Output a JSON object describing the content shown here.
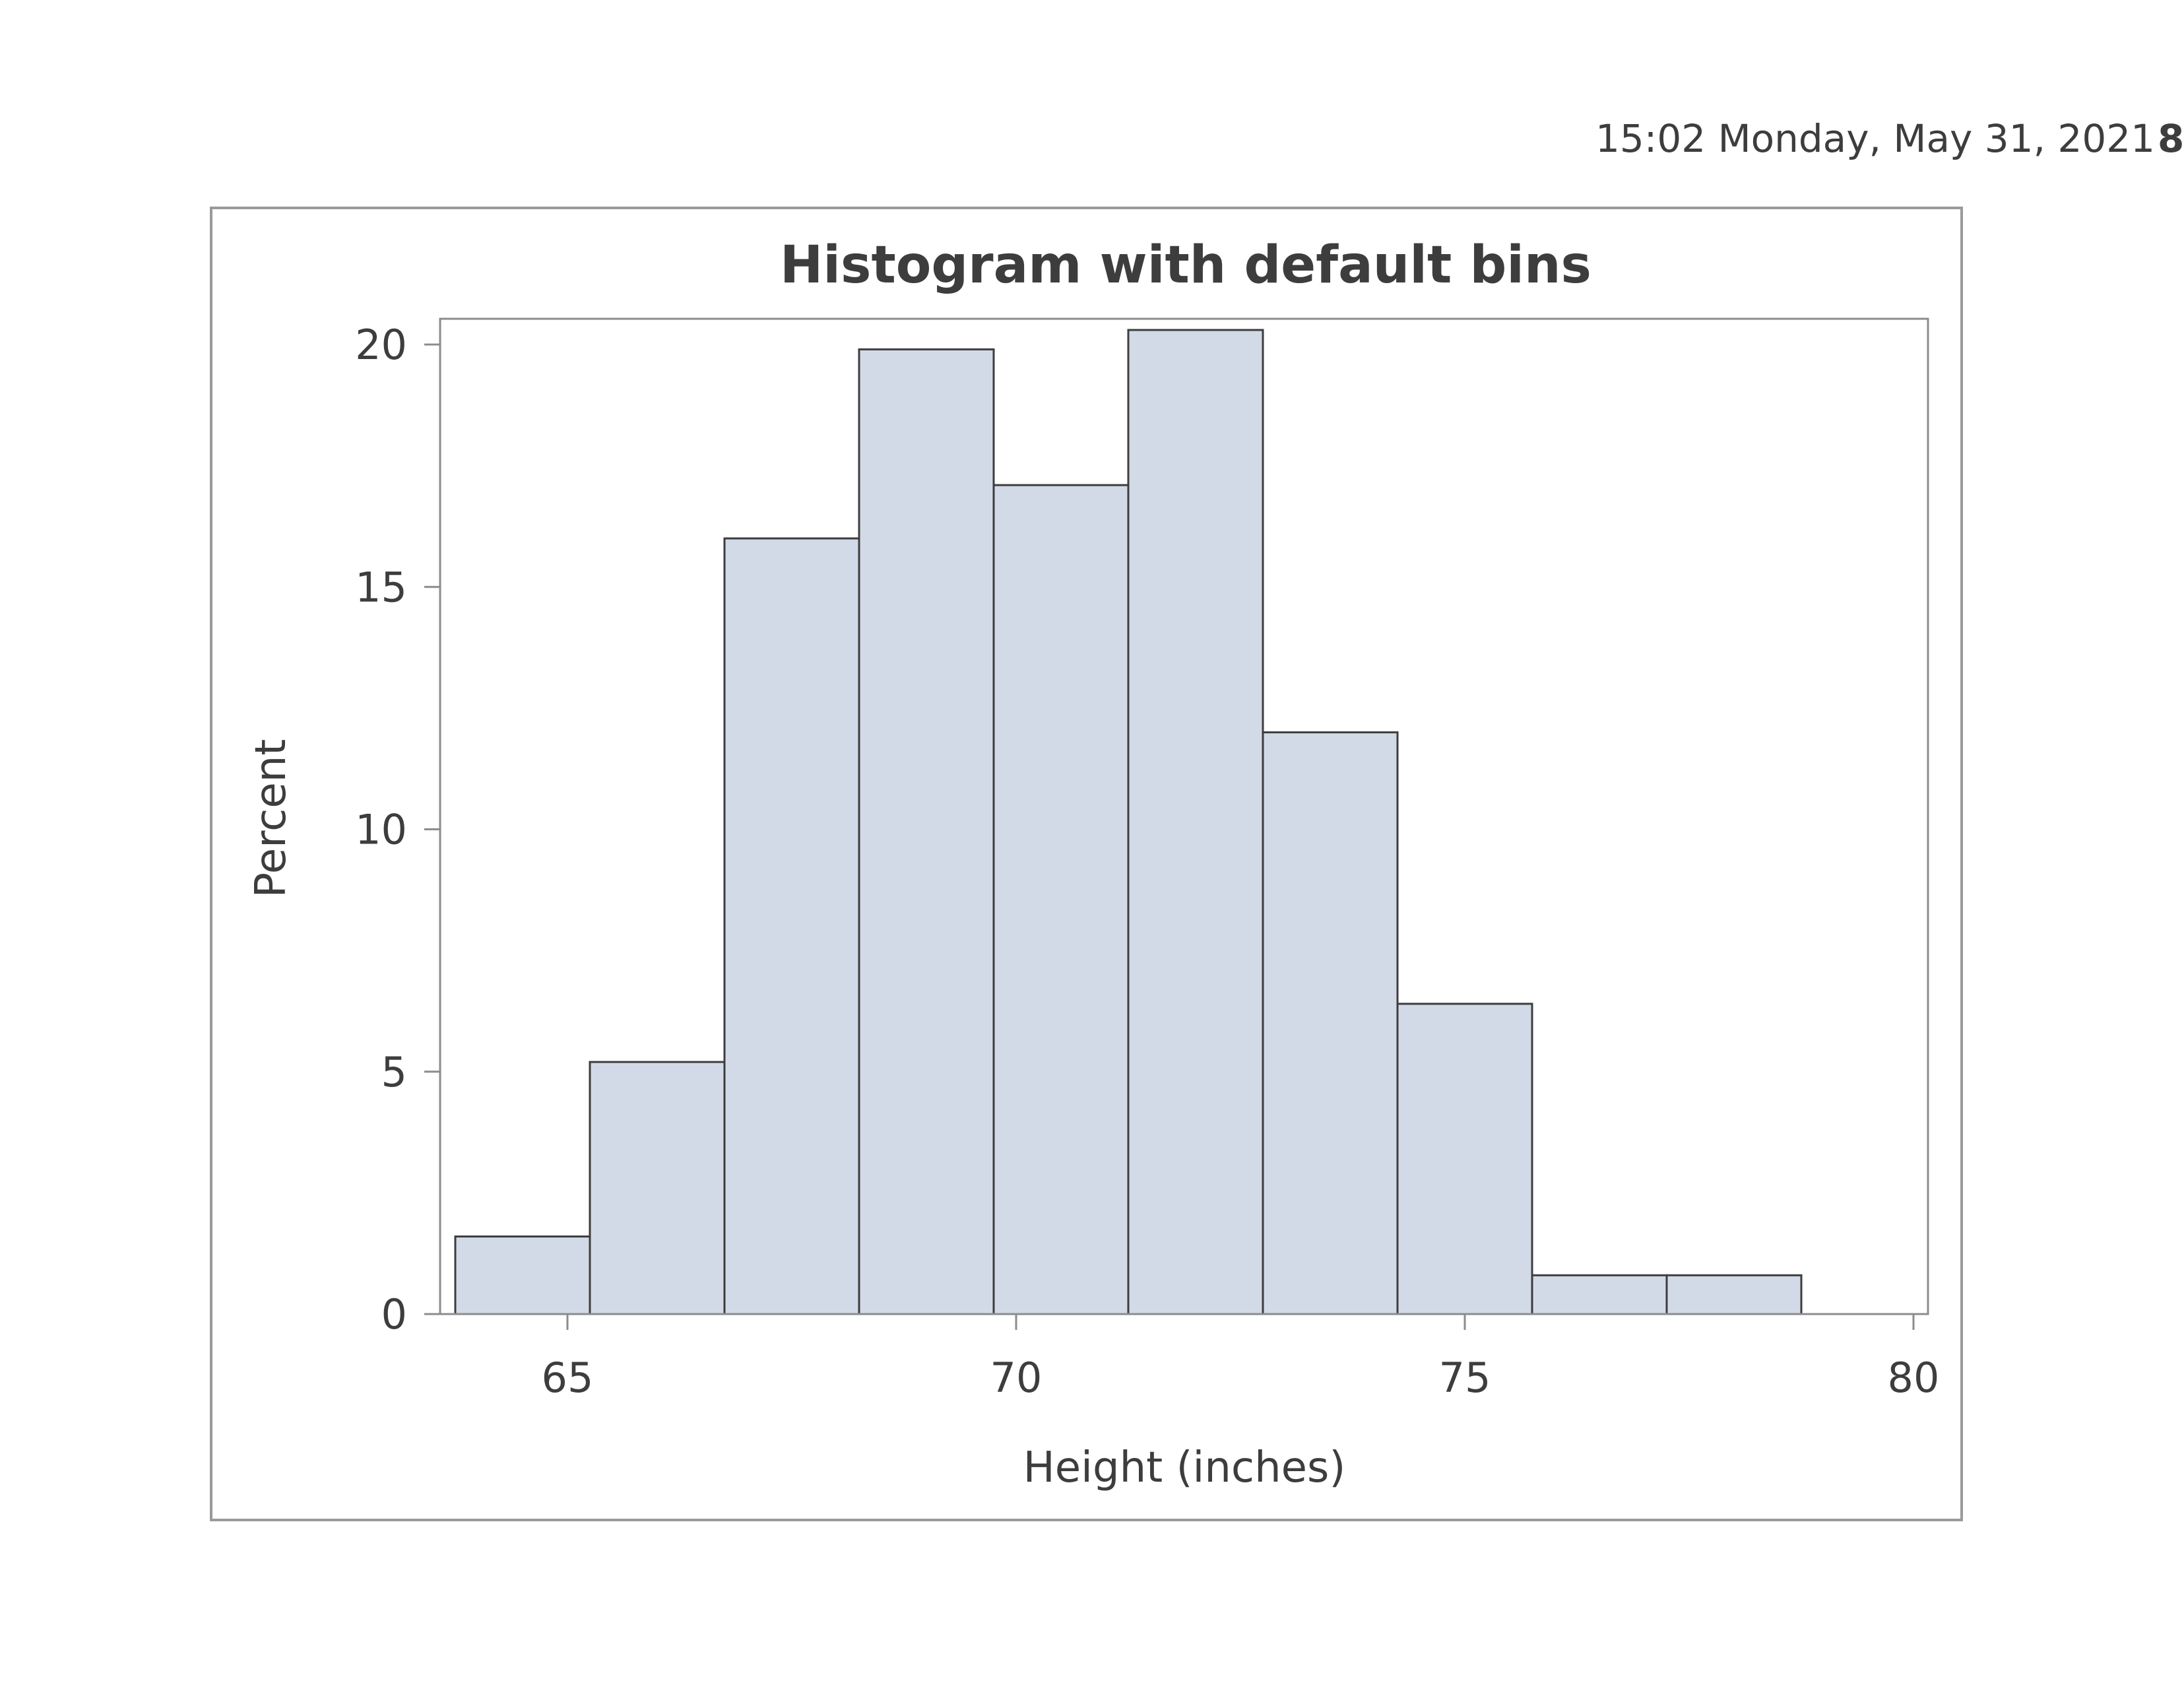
{
  "page": {
    "timestamp": "15:02 Monday, May 31, 2021",
    "page_number": "8"
  },
  "chart_data": {
    "type": "bar",
    "title": "Histogram with default bins",
    "xlabel": "Height (inches)",
    "ylabel": "Percent",
    "xlim": [
      63.6,
      80.0
    ],
    "ylim": [
      0,
      20.5
    ],
    "x_ticks": [
      65,
      70,
      75,
      80
    ],
    "y_ticks": [
      0,
      5,
      10,
      15,
      20
    ],
    "grid": false,
    "legend": "none",
    "bin_width": 1.5,
    "bins": [
      {
        "start": 63.75,
        "end": 65.25,
        "value": 1.6
      },
      {
        "start": 65.25,
        "end": 66.75,
        "value": 5.2
      },
      {
        "start": 66.75,
        "end": 68.25,
        "value": 16.0
      },
      {
        "start": 68.25,
        "end": 69.75,
        "value": 19.9
      },
      {
        "start": 69.75,
        "end": 71.25,
        "value": 17.1
      },
      {
        "start": 71.25,
        "end": 72.75,
        "value": 20.3
      },
      {
        "start": 72.75,
        "end": 74.25,
        "value": 12.0
      },
      {
        "start": 74.25,
        "end": 75.75,
        "value": 6.4
      },
      {
        "start": 75.75,
        "end": 77.25,
        "value": 0.8
      },
      {
        "start": 77.25,
        "end": 78.75,
        "value": 0.8
      }
    ],
    "colors": {
      "bar_fill": "#d3dae7",
      "bar_stroke": "#3d3d3d",
      "axis": "#8c8c8c",
      "text": "#3d3d3d"
    }
  }
}
